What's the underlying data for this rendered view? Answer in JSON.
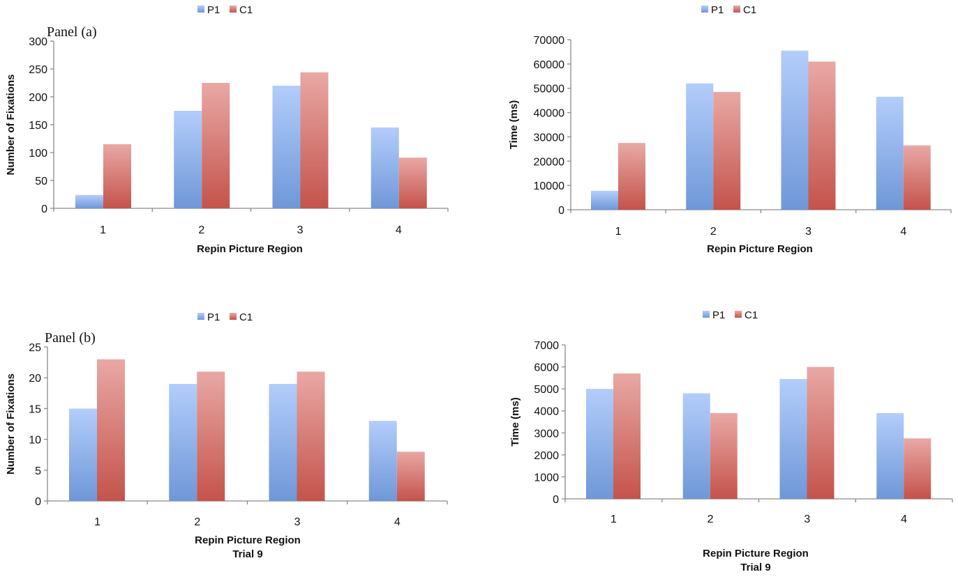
{
  "colors": {
    "p1_top": "#b3cdfb",
    "p1_bottom": "#6f97d8",
    "c1_top": "#e9a8a5",
    "c1_bottom": "#c4534b",
    "axis": "#8a8a8a",
    "text": "#111111"
  },
  "chart_data": [
    {
      "id": "top-left",
      "type": "bar",
      "panel_label": "Panel (a)",
      "title": "",
      "xlabel": "Repin Picture Region",
      "xlabel2": "",
      "ylabel": "Number of Fixations",
      "categories": [
        "1",
        "2",
        "3",
        "4"
      ],
      "yticks": [
        "0",
        "50",
        "100",
        "150",
        "200",
        "250",
        "300"
      ],
      "ylim": [
        0,
        300
      ],
      "grid": false,
      "legend": {
        "placement": "top-center",
        "entries": [
          "P1",
          "C1"
        ]
      },
      "series": [
        {
          "name": "P1",
          "values": [
            24,
            175,
            220,
            145
          ]
        },
        {
          "name": "C1",
          "values": [
            115,
            225,
            244,
            91
          ]
        }
      ]
    },
    {
      "id": "top-right",
      "type": "bar",
      "panel_label": "",
      "title": "",
      "xlabel": "Repin Picture Region",
      "xlabel2": "",
      "ylabel": "Time (ms)",
      "categories": [
        "1",
        "2",
        "3",
        "4"
      ],
      "yticks": [
        "0",
        "10000",
        "20000",
        "30000",
        "40000",
        "50000",
        "60000",
        "70000"
      ],
      "ylim": [
        0,
        70000
      ],
      "grid": false,
      "legend": {
        "placement": "top-center",
        "entries": [
          "P1",
          "C1"
        ]
      },
      "series": [
        {
          "name": "P1",
          "values": [
            7800,
            52000,
            65500,
            46500
          ]
        },
        {
          "name": "C1",
          "values": [
            27500,
            48500,
            61000,
            26500
          ]
        }
      ]
    },
    {
      "id": "bottom-left",
      "type": "bar",
      "panel_label": "Panel (b)",
      "title": "",
      "xlabel": "Repin Picture Region",
      "xlabel2": "Trial 9",
      "ylabel": "Number of Fixations",
      "categories": [
        "1",
        "2",
        "3",
        "4"
      ],
      "yticks": [
        "0",
        "5",
        "10",
        "15",
        "20",
        "25"
      ],
      "ylim": [
        0,
        25
      ],
      "grid": false,
      "legend": {
        "placement": "top-center",
        "entries": [
          "P1",
          "C1"
        ]
      },
      "series": [
        {
          "name": "P1",
          "values": [
            15,
            19,
            19,
            13
          ]
        },
        {
          "name": "C1",
          "values": [
            23,
            21,
            21,
            8
          ]
        }
      ]
    },
    {
      "id": "bottom-right",
      "type": "bar",
      "panel_label": "",
      "title": "",
      "xlabel": "Repin Picture Region",
      "xlabel2": "Trial 9",
      "ylabel": "Time (ms)",
      "categories": [
        "1",
        "2",
        "3",
        "4"
      ],
      "yticks": [
        "0",
        "1000",
        "2000",
        "3000",
        "4000",
        "5000",
        "6000",
        "7000"
      ],
      "ylim": [
        0,
        7000
      ],
      "grid": false,
      "legend": {
        "placement": "top-center",
        "entries": [
          "P1",
          "C1"
        ]
      },
      "series": [
        {
          "name": "P1",
          "values": [
            5000,
            4800,
            5450,
            3900
          ]
        },
        {
          "name": "C1",
          "values": [
            5700,
            3900,
            6000,
            2750
          ]
        }
      ]
    }
  ]
}
